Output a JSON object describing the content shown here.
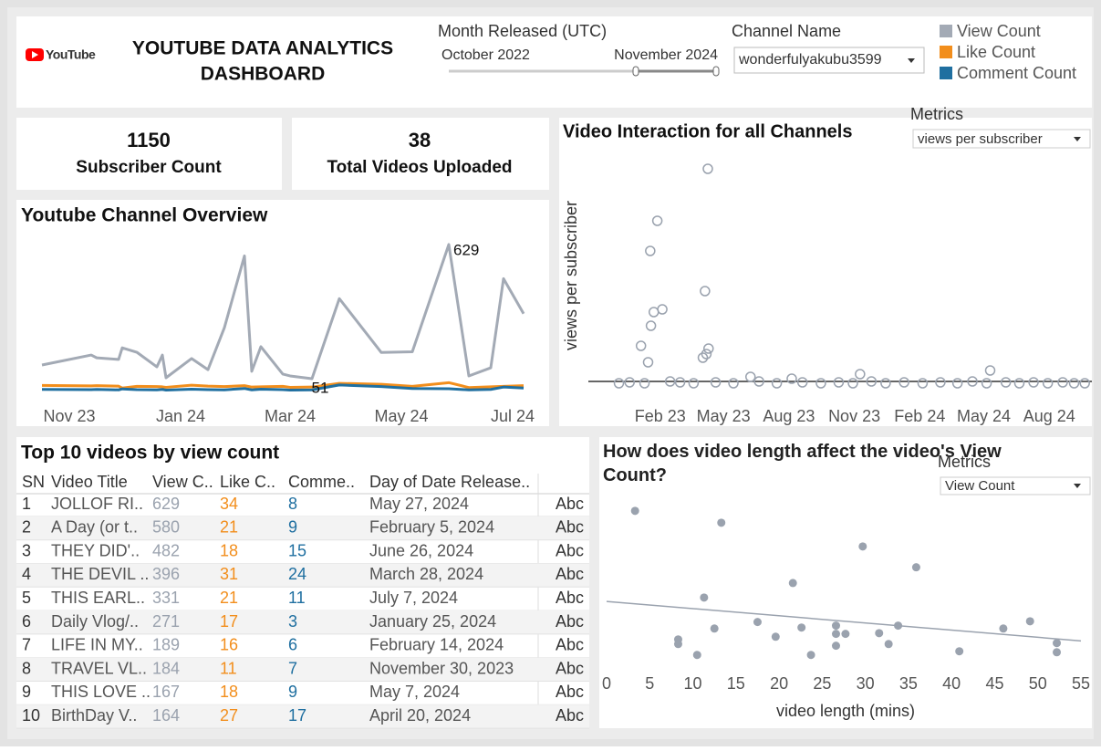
{
  "header": {
    "logo": "YouTube",
    "title_lines": [
      "YOUTUBE DATA ANALYTICS",
      "DASHBOARD"
    ],
    "filter_label": "Month Released (UTC)",
    "range_start": "October 2022",
    "range_end": "November 2024",
    "channel_label": "Channel Name",
    "channel_value": "wonderfulyakubu3599"
  },
  "kpis": [
    {
      "value": 1150,
      "label": "Subscriber Count"
    },
    {
      "value": 38,
      "label": "Total Videos Uploaded"
    }
  ],
  "chart_data": [
    {
      "type": "line",
      "title": "Youtube Channel Overview",
      "x": [
        "2023-10-17",
        "2023-11-13",
        "2023-11-16",
        "2023-11-28",
        "2023-11-30",
        "2023-12-08",
        "2023-12-19",
        "2023-12-22",
        "2023-12-24",
        "2024-01-07",
        "2024-01-16",
        "2024-01-25",
        "2024-02-05",
        "2024-02-09",
        "2024-02-14",
        "2024-02-26",
        "2024-03-01",
        "2024-03-13",
        "2024-03-28",
        "2024-04-20",
        "2024-05-07",
        "2024-05-27",
        "2024-06-07",
        "2024-06-19",
        "2024-06-26",
        "2024-07-07"
      ],
      "series": [
        {
          "name": "View Count",
          "color": "#a3aab5",
          "values": [
            110,
            153,
            141,
            134,
            184,
            165,
            102,
            153,
            55,
            138,
            90,
            271,
            580,
            83,
            189,
            71,
            63,
            51,
            396,
            164,
            167,
            629,
            63,
            98,
            482,
            331
          ]
        },
        {
          "name": "Like Count",
          "color": "#f28e1c",
          "values": [
            22,
            20,
            21,
            19,
            11,
            18,
            17,
            16,
            14,
            23,
            19,
            17,
            21,
            15,
            16,
            18,
            14,
            15,
            31,
            27,
            18,
            34,
            13,
            16,
            18,
            21
          ]
        },
        {
          "name": "Comment Count",
          "color": "#1f6fa0",
          "values": [
            5,
            4,
            5,
            3,
            7,
            4,
            3,
            5,
            2,
            6,
            4,
            3,
            9,
            3,
            6,
            4,
            2,
            3,
            24,
            17,
            9,
            8,
            3,
            5,
            15,
            11
          ]
        }
      ],
      "xlim": [
        "2023-10-15",
        "2024-07-20"
      ],
      "xticks": [
        {
          "value": "2023-11-01",
          "label": "Nov 23"
        },
        {
          "value": "2024-01-01",
          "label": "Jan 24"
        },
        {
          "value": "2024-03-01",
          "label": "Mar 24"
        },
        {
          "value": "2024-05-01",
          "label": "May 24"
        },
        {
          "value": "2024-07-01",
          "label": "Jul 24"
        }
      ],
      "ylim": [
        0,
        680
      ],
      "label_extremes": true
    },
    {
      "type": "scatter",
      "title": "Video Interaction for all Channels",
      "y_label": "views per subscriber",
      "metric_label": "Metrics",
      "metric_value": "views per subscriber",
      "marker": "hollow",
      "color": "#9aa2ae",
      "x": [
        "2023-04-09",
        "2023-01-28",
        "2023-01-18",
        "2023-04-05",
        "2023-01-23",
        "2023-02-04",
        "2023-01-19",
        "2023-01-05",
        "2023-01-15",
        "2023-04-10",
        "2023-04-07",
        "2023-04-02",
        "2024-05-10",
        "2023-11-09",
        "2023-06-08",
        "2023-08-05",
        "2022-12-05",
        "2022-12-20",
        "2023-01-10",
        "2023-02-15",
        "2023-03-01",
        "2023-03-20",
        "2023-04-20",
        "2023-05-15",
        "2023-06-20",
        "2023-07-15",
        "2023-08-20",
        "2023-09-15",
        "2023-10-10",
        "2023-10-30",
        "2023-11-25",
        "2023-12-15",
        "2024-01-10",
        "2024-02-05",
        "2024-03-01",
        "2024-03-25",
        "2024-04-15",
        "2024-05-05",
        "2024-06-01",
        "2024-06-20",
        "2024-07-10",
        "2024-07-30",
        "2024-08-20",
        "2024-09-05",
        "2024-09-20"
      ],
      "y": [
        23.6,
        17.9,
        14.6,
        10.2,
        7.9,
        8.2,
        6.4,
        4.2,
        2.4,
        3.9,
        3.3,
        2.9,
        1.5,
        1.1,
        0.8,
        0.6,
        0.1,
        0.2,
        0.1,
        0.3,
        0.2,
        0.1,
        0.2,
        0.1,
        0.3,
        0.1,
        0.2,
        0.1,
        0.2,
        0.1,
        0.3,
        0.1,
        0.2,
        0.1,
        0.2,
        0.1,
        0.3,
        0.1,
        0.2,
        0.1,
        0.2,
        0.1,
        0.2,
        0.1,
        0.1
      ],
      "reference_line": 0.3,
      "xlim": [
        "2022-10-23",
        "2024-09-30"
      ],
      "xticks": [
        {
          "value": "2023-02-01",
          "label": "Feb 23"
        },
        {
          "value": "2023-05-01",
          "label": "May 23"
        },
        {
          "value": "2023-08-01",
          "label": "Aug 23"
        },
        {
          "value": "2023-11-01",
          "label": "Nov 23"
        },
        {
          "value": "2024-02-01",
          "label": "Feb 24"
        },
        {
          "value": "2024-05-01",
          "label": "May 24"
        },
        {
          "value": "2024-08-01",
          "label": "Aug 24"
        }
      ],
      "ylim": [
        -1.2,
        25.3
      ]
    },
    {
      "type": "scatter",
      "title": "How does video length affect the video's View Count?",
      "x_label": "video length (mins)",
      "metric_label": "Metrics",
      "metric_value": "View Count",
      "marker": "filled",
      "color": "#9aa2ae",
      "x": [
        3.3,
        13.3,
        29.7,
        35.9,
        21.6,
        11.3,
        12.5,
        8.3,
        8.3,
        10.5,
        17.5,
        19.6,
        22.6,
        23.7,
        26.6,
        26.6,
        26.6,
        27.7,
        31.6,
        32.7,
        33.8,
        40.9,
        46.0,
        49.1,
        52.2,
        52.2
      ],
      "y": [
        629,
        580,
        482,
        396,
        331,
        271,
        143,
        98,
        79,
        34,
        170,
        109,
        147,
        34,
        155,
        121,
        72,
        121,
        124,
        79,
        155,
        49,
        143,
        173,
        83,
        45
      ],
      "trendline": {
        "x": [
          0,
          55
        ],
        "y": [
          255,
          92
        ]
      },
      "xlim": [
        0,
        55
      ],
      "xticks": [
        0,
        5,
        10,
        15,
        20,
        25,
        30,
        35,
        40,
        45,
        50,
        55
      ],
      "ylim": [
        -50,
        700
      ]
    }
  ],
  "table": {
    "title": "Top 10 videos by view count",
    "columns": [
      "SN",
      "Video Title",
      "View C..",
      "Like C..",
      "Comme..",
      "Day of Date Release.."
    ],
    "rows": [
      [
        1,
        "JOLLOF RI..",
        629,
        34,
        8,
        "May 27, 2024",
        "Abc"
      ],
      [
        2,
        "A Day (or t..",
        580,
        21,
        9,
        "February 5, 2024",
        "Abc"
      ],
      [
        3,
        "THEY DID'..",
        482,
        18,
        15,
        "June 26, 2024",
        "Abc"
      ],
      [
        4,
        "THE DEVIL ..",
        396,
        31,
        24,
        "March 28, 2024",
        "Abc"
      ],
      [
        5,
        "THIS EARL..",
        331,
        21,
        11,
        "July 7, 2024",
        "Abc"
      ],
      [
        6,
        "Daily Vlog/..",
        271,
        17,
        3,
        "January 25, 2024",
        "Abc"
      ],
      [
        7,
        "LIFE IN MY..",
        189,
        16,
        6,
        "February 14, 2024",
        "Abc"
      ],
      [
        8,
        "TRAVEL VL..",
        184,
        11,
        7,
        "November 30, 2023",
        "Abc"
      ],
      [
        9,
        "THIS LOVE ..",
        167,
        18,
        9,
        "May 7, 2024",
        "Abc"
      ],
      [
        10,
        "BirthDay V..",
        164,
        27,
        17,
        "April 20, 2024",
        "Abc"
      ]
    ]
  }
}
